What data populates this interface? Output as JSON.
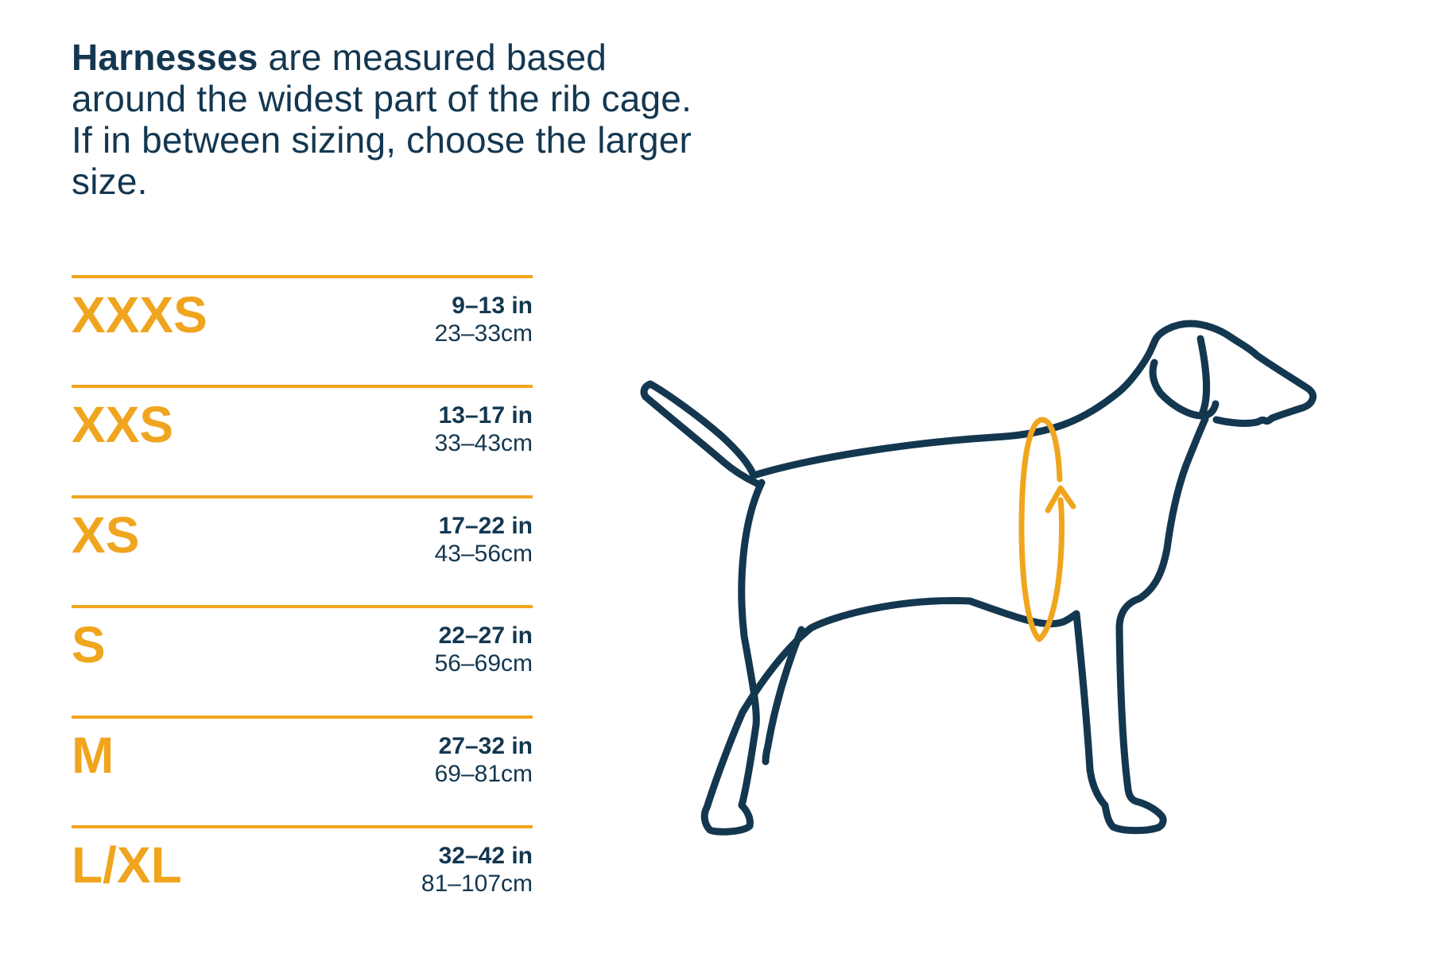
{
  "intro": {
    "lead": "Harnesses",
    "rest": " are measured based around the widest part of the rib cage. If in between sizing, choose the larger size."
  },
  "colors": {
    "navy": "#143750",
    "gold": "#F0A51E",
    "background": "#FFFFFF"
  },
  "size_table": {
    "rows": [
      {
        "size": "XXXS",
        "inches": "9–13 in",
        "cm": "23–33cm"
      },
      {
        "size": "XXS",
        "inches": "13–17 in",
        "cm": "33–43cm"
      },
      {
        "size": "XS",
        "inches": "17–22 in",
        "cm": "43–56cm"
      },
      {
        "size": "S",
        "inches": "22–27 in",
        "cm": "56–69cm"
      },
      {
        "size": "M",
        "inches": "27–32 in",
        "cm": "69–81cm"
      },
      {
        "size": "L/XL",
        "inches": "32–42 in",
        "cm": "81–107cm"
      }
    ]
  },
  "illustration": {
    "name": "dog-side-profile",
    "description": "Outline drawing of a standing dog facing right with a measurement loop and upward arrow around the widest part of the rib cage"
  }
}
